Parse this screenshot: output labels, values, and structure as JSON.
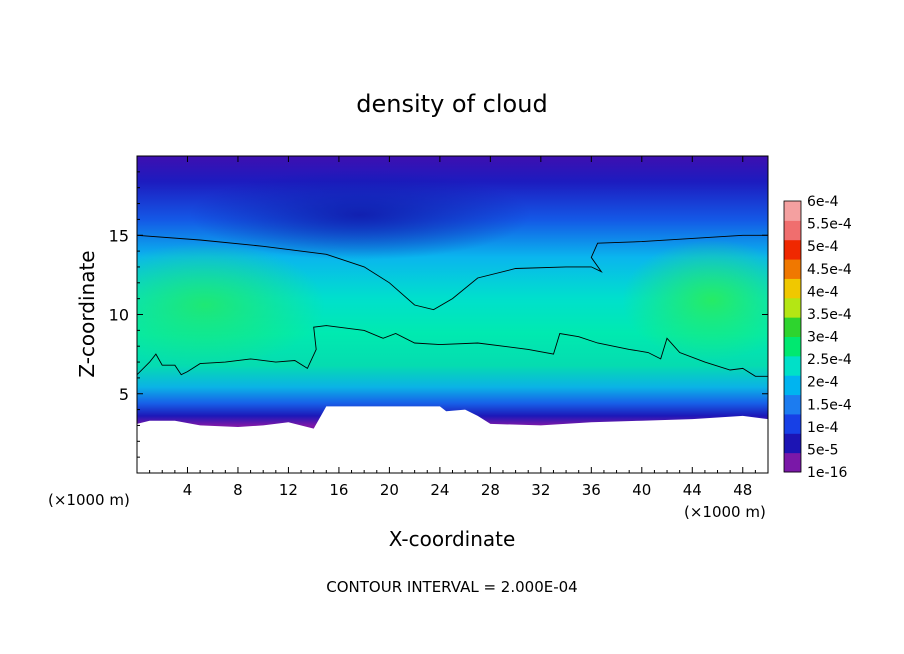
{
  "chart_data": {
    "type": "heatmap",
    "title": "density of cloud",
    "xlabel": "X-coordinate",
    "ylabel": "Z-coordinate",
    "x_unit_left": "(×1000 m)",
    "x_unit_right": "(×1000 m)",
    "footer": "CONTOUR INTERVAL = 2.000E-04",
    "xlim": [
      0,
      50
    ],
    "ylim": [
      0,
      20
    ],
    "x_ticks": [
      4,
      8,
      12,
      16,
      20,
      24,
      28,
      32,
      36,
      40,
      44,
      48
    ],
    "y_ticks": [
      5,
      10,
      15
    ],
    "contour_interval": 0.0002,
    "colorbar": {
      "labels": [
        "6e-4",
        "5.5e-4",
        "5e-4",
        "4.5e-4",
        "4e-4",
        "3.5e-4",
        "3e-4",
        "2.5e-4",
        "2e-4",
        "1.5e-4",
        "1e-4",
        "5e-5",
        "1e-16"
      ],
      "colors": [
        "#7a18a8",
        "#1c14b4",
        "#1740e6",
        "#1c7cf0",
        "#00b4f0",
        "#00e0c8",
        "#00e870",
        "#2ed42e",
        "#b4e614",
        "#f0c800",
        "#f07800",
        "#f02800",
        "#f06e6e",
        "#f4a0a0"
      ]
    },
    "contour_level": 0.0002,
    "contour_lines": [
      [
        [
          0,
          15.0
        ],
        [
          5,
          14.7
        ],
        [
          10,
          14.3
        ],
        [
          15,
          13.8
        ],
        [
          18,
          13.0
        ],
        [
          20,
          12.0
        ],
        [
          22,
          10.6
        ],
        [
          23.5,
          10.3
        ],
        [
          25,
          11.0
        ],
        [
          27,
          12.3
        ],
        [
          30,
          12.9
        ],
        [
          34,
          13.0
        ],
        [
          36,
          13.0
        ],
        [
          36.8,
          12.7
        ],
        [
          36,
          13.6
        ],
        [
          36.5,
          14.5
        ],
        [
          40,
          14.6
        ],
        [
          44,
          14.8
        ],
        [
          48,
          15.0
        ],
        [
          50,
          15.0
        ]
      ],
      [
        [
          0,
          6.2
        ],
        [
          1,
          7.0
        ],
        [
          1.5,
          7.5
        ],
        [
          2,
          6.8
        ],
        [
          3,
          6.8
        ],
        [
          3.5,
          6.2
        ],
        [
          4,
          6.4
        ],
        [
          5,
          6.9
        ],
        [
          7,
          7.0
        ],
        [
          9,
          7.2
        ],
        [
          11,
          7.0
        ],
        [
          12.5,
          7.1
        ],
        [
          13.5,
          6.6
        ],
        [
          14.2,
          7.8
        ],
        [
          14,
          9.2
        ],
        [
          15,
          9.3
        ],
        [
          18,
          9.0
        ],
        [
          19.5,
          8.5
        ],
        [
          20.5,
          8.8
        ],
        [
          22,
          8.2
        ],
        [
          24,
          8.1
        ],
        [
          27,
          8.2
        ],
        [
          31,
          7.8
        ],
        [
          33,
          7.5
        ],
        [
          33.5,
          8.8
        ],
        [
          35,
          8.6
        ],
        [
          36.5,
          8.2
        ],
        [
          39,
          7.8
        ],
        [
          40.5,
          7.6
        ],
        [
          41.5,
          7.2
        ],
        [
          42,
          8.5
        ],
        [
          43,
          7.6
        ],
        [
          45,
          7.0
        ],
        [
          47,
          6.5
        ],
        [
          48,
          6.6
        ],
        [
          49,
          6.1
        ],
        [
          50,
          6.1
        ]
      ]
    ],
    "terrain_top": [
      [
        0,
        3.1
      ],
      [
        1,
        3.3
      ],
      [
        3,
        3.3
      ],
      [
        5,
        3.0
      ],
      [
        8,
        2.9
      ],
      [
        10,
        3.0
      ],
      [
        12,
        3.2
      ],
      [
        14,
        2.8
      ],
      [
        15,
        4.2
      ],
      [
        20,
        4.2
      ],
      [
        24,
        4.2
      ],
      [
        24.5,
        3.9
      ],
      [
        26,
        4.0
      ],
      [
        27,
        3.6
      ],
      [
        28,
        3.1
      ],
      [
        32,
        3.0
      ],
      [
        36,
        3.2
      ],
      [
        40,
        3.3
      ],
      [
        44,
        3.4
      ],
      [
        48,
        3.6
      ],
      [
        50,
        3.4
      ]
    ]
  }
}
